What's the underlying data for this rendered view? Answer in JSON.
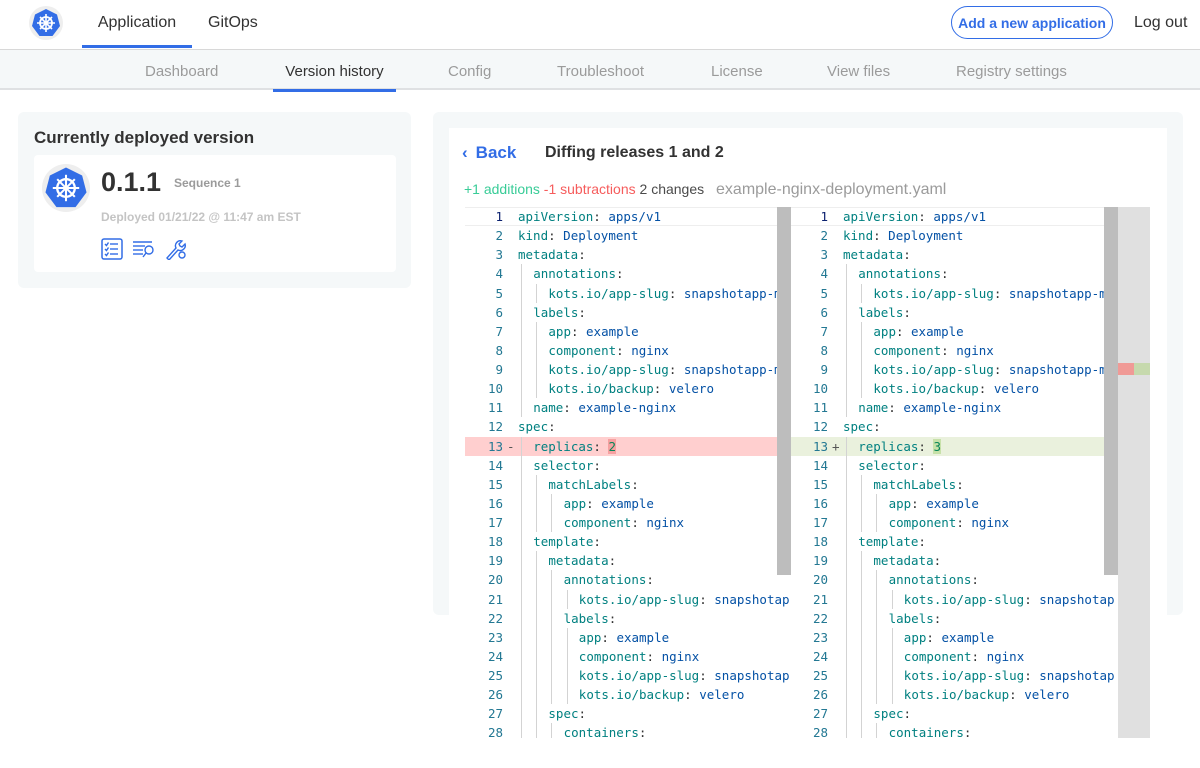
{
  "nav": {
    "tabs": [
      {
        "label": "Application",
        "active": true
      },
      {
        "label": "GitOps",
        "active": false
      }
    ],
    "add_button": "Add a new application",
    "logout": "Log out",
    "logo_icon": "kubernetes-helm-icon"
  },
  "subnav": {
    "tabs": [
      {
        "label": "Dashboard"
      },
      {
        "label": "Version history",
        "active": true
      },
      {
        "label": "Config"
      },
      {
        "label": "Troubleshoot"
      },
      {
        "label": "License"
      },
      {
        "label": "View files"
      },
      {
        "label": "Registry settings"
      }
    ]
  },
  "deployed": {
    "title": "Currently deployed version",
    "version": "0.1.1",
    "sequence": "Sequence 1",
    "deployed_at": "Deployed 01/21/22 @ 11:47 am EST",
    "icons": [
      "checklist-icon",
      "logs-search-icon",
      "wrench-gear-icon"
    ]
  },
  "diff": {
    "back": "Back",
    "title": "Diffing releases 1 and 2",
    "additions": "+1 additions",
    "subtractions": "-1 subtractions",
    "changes": "2 changes",
    "filename": "example-nginx-deployment.yaml",
    "colors": {
      "addition": "#38cc97",
      "subtraction": "#f65c5c",
      "accent": "#326de6"
    },
    "lines": [
      {
        "n": 1,
        "i": 0,
        "k": "apiVersion",
        "v": "apps/v1"
      },
      {
        "n": 2,
        "i": 0,
        "k": "kind",
        "v": "Deployment"
      },
      {
        "n": 3,
        "i": 0,
        "k": "metadata",
        "v": ""
      },
      {
        "n": 4,
        "i": 1,
        "k": "annotations",
        "v": ""
      },
      {
        "n": 5,
        "i": 2,
        "k": "kots.io/app-slug",
        "v": "snapshotapp-mu"
      },
      {
        "n": 6,
        "i": 1,
        "k": "labels",
        "v": ""
      },
      {
        "n": 7,
        "i": 2,
        "k": "app",
        "v": "example"
      },
      {
        "n": 8,
        "i": 2,
        "k": "component",
        "v": "nginx"
      },
      {
        "n": 9,
        "i": 2,
        "k": "kots.io/app-slug",
        "v": "snapshotapp-mu"
      },
      {
        "n": 10,
        "i": 2,
        "k": "kots.io/backup",
        "v": "velero"
      },
      {
        "n": 11,
        "i": 1,
        "k": "name",
        "v": "example-nginx"
      },
      {
        "n": 12,
        "i": 0,
        "k": "spec",
        "v": ""
      },
      {
        "n": 13,
        "i": 1,
        "k": "replicas",
        "v": "2",
        "v2": "3",
        "changed": true
      },
      {
        "n": 14,
        "i": 1,
        "k": "selector",
        "v": ""
      },
      {
        "n": 15,
        "i": 2,
        "k": "matchLabels",
        "v": ""
      },
      {
        "n": 16,
        "i": 3,
        "k": "app",
        "v": "example"
      },
      {
        "n": 17,
        "i": 3,
        "k": "component",
        "v": "nginx"
      },
      {
        "n": 18,
        "i": 1,
        "k": "template",
        "v": ""
      },
      {
        "n": 19,
        "i": 2,
        "k": "metadata",
        "v": ""
      },
      {
        "n": 20,
        "i": 3,
        "k": "annotations",
        "v": ""
      },
      {
        "n": 21,
        "i": 4,
        "k": "kots.io/app-slug",
        "v": "snapshotap"
      },
      {
        "n": 22,
        "i": 3,
        "k": "labels",
        "v": ""
      },
      {
        "n": 23,
        "i": 4,
        "k": "app",
        "v": "example"
      },
      {
        "n": 24,
        "i": 4,
        "k": "component",
        "v": "nginx"
      },
      {
        "n": 25,
        "i": 4,
        "k": "kots.io/app-slug",
        "v": "snapshotap"
      },
      {
        "n": 26,
        "i": 4,
        "k": "kots.io/backup",
        "v": "velero"
      },
      {
        "n": 27,
        "i": 2,
        "k": "spec",
        "v": ""
      },
      {
        "n": 28,
        "i": 3,
        "k": "containers",
        "v": ""
      }
    ]
  }
}
